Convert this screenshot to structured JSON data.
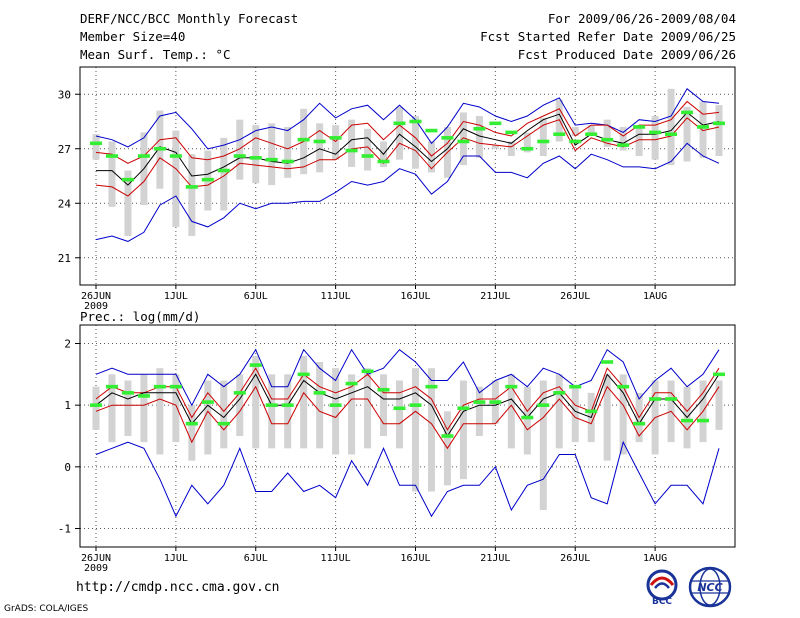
{
  "header": {
    "title": "DERF/NCC/BCC Monthly Forecast",
    "member_size": "Member Size=40",
    "top_var": "Mean Surf. Temp.: °C",
    "period": "For 2009/06/26-2009/08/04",
    "refer_date": "Fcst Started Refer Date 2009/06/25",
    "produced_date": "Fcst Produced Date 2009/06/26"
  },
  "footer": {
    "url": "http://cmdp.ncc.cma.gov.cn",
    "grads": "GrADS: COLA/IGES",
    "logo_bcc": "BCC",
    "logo_ncc": "NCC"
  },
  "colors": {
    "envelope": "#0000cc",
    "spread": "#cc0000",
    "mean": "#000000",
    "marker": "#33ee33",
    "bar": "#d3d3d3"
  },
  "chart_data": [
    {
      "type": "line",
      "title": "Mean Surf. Temp.: °C",
      "ylim": [
        19.5,
        31.5
      ],
      "yticks": [
        21,
        24,
        27,
        30
      ],
      "xlabels": [
        "26JUN",
        "1JUL",
        "6JUL",
        "11JUL",
        "16JUL",
        "21JUL",
        "26JUL",
        "1AUG"
      ],
      "xlabel_year": "2009",
      "days": 40,
      "grid": true,
      "series": [
        {
          "name": "max",
          "values": [
            27.7,
            27.5,
            27.1,
            27.6,
            28.8,
            29.0,
            28.1,
            27.0,
            27.2,
            27.5,
            28.0,
            28.2,
            28.0,
            28.6,
            29.5,
            28.7,
            29.2,
            29.4,
            28.6,
            29.4,
            28.6,
            27.3,
            28.2,
            29.5,
            29.3,
            28.8,
            28.5,
            28.8,
            29.4,
            29.8,
            28.3,
            28.4,
            28.3,
            27.9,
            28.6,
            28.5,
            28.8,
            30.3,
            29.6,
            29.5
          ]
        },
        {
          "name": "upper",
          "values": [
            26.8,
            26.7,
            26.2,
            26.6,
            27.5,
            27.6,
            26.5,
            26.4,
            26.6,
            27.0,
            27.6,
            27.3,
            27.0,
            27.4,
            28.0,
            27.4,
            28.3,
            28.4,
            27.5,
            28.3,
            27.6,
            26.6,
            27.3,
            28.5,
            28.3,
            27.9,
            27.7,
            28.4,
            28.8,
            29.2,
            27.7,
            28.3,
            28.3,
            27.7,
            28.3,
            28.3,
            28.6,
            29.6,
            28.9,
            29.0
          ]
        },
        {
          "name": "mean",
          "values": [
            25.8,
            25.8,
            25.0,
            25.9,
            27.1,
            26.8,
            25.5,
            25.6,
            26.0,
            26.5,
            26.5,
            26.3,
            26.2,
            26.5,
            27.0,
            26.7,
            27.5,
            27.6,
            26.7,
            27.8,
            27.1,
            26.3,
            27.0,
            28.1,
            27.7,
            27.5,
            27.3,
            28.0,
            28.6,
            28.9,
            27.2,
            27.8,
            27.5,
            27.3,
            27.8,
            27.8,
            28.0,
            29.0,
            28.3,
            28.5
          ]
        },
        {
          "name": "lower",
          "values": [
            25.0,
            24.9,
            24.4,
            25.2,
            26.5,
            25.9,
            24.9,
            25.0,
            25.5,
            26.2,
            26.1,
            26.0,
            25.9,
            26.0,
            26.4,
            26.4,
            27.0,
            27.1,
            26.2,
            27.3,
            26.9,
            25.9,
            26.8,
            27.6,
            27.3,
            27.2,
            27.1,
            27.7,
            28.3,
            28.6,
            26.9,
            27.6,
            27.3,
            27.1,
            27.5,
            27.5,
            27.7,
            28.7,
            28.0,
            28.2
          ]
        },
        {
          "name": "min",
          "values": [
            22.0,
            22.2,
            21.9,
            22.4,
            23.9,
            24.4,
            23.0,
            22.7,
            23.2,
            24.0,
            23.7,
            24.0,
            24.0,
            24.1,
            24.1,
            24.6,
            25.2,
            25.0,
            25.2,
            25.9,
            25.6,
            24.5,
            25.2,
            26.6,
            26.6,
            25.7,
            25.7,
            25.4,
            26.2,
            26.6,
            25.9,
            26.7,
            26.4,
            26.0,
            26.0,
            25.9,
            26.3,
            27.3,
            26.6,
            26.2
          ]
        },
        {
          "name": "bar_top",
          "values": [
            27.8,
            27.4,
            25.8,
            27.9,
            29.1,
            28.0,
            26.7,
            26.9,
            27.6,
            28.6,
            28.3,
            28.4,
            28.2,
            29.2,
            28.4,
            28.3,
            28.6,
            28.1,
            27.4,
            29.3,
            28.8,
            27.4,
            28.2,
            29.0,
            28.8,
            27.2,
            27.4,
            27.9,
            28.7,
            29.7,
            28.2,
            28.3,
            28.6,
            28.2,
            28.3,
            28.8,
            30.3,
            29.3,
            29.6,
            29.4
          ]
        },
        {
          "name": "bar_bottom",
          "values": [
            26.4,
            23.8,
            22.2,
            23.9,
            24.8,
            22.7,
            22.2,
            23.6,
            23.6,
            25.3,
            25.1,
            25.0,
            25.4,
            25.6,
            25.7,
            26.4,
            26.0,
            25.8,
            26.0,
            26.4,
            25.9,
            25.7,
            25.4,
            26.1,
            26.5,
            27.0,
            26.6,
            26.8,
            26.6,
            27.4,
            27.7,
            27.8,
            27.1,
            26.9,
            26.6,
            26.4,
            26.1,
            26.3,
            26.5,
            26.6
          ]
        },
        {
          "name": "markers",
          "values": [
            27.3,
            26.6,
            25.3,
            26.6,
            27.0,
            26.6,
            24.9,
            25.3,
            25.8,
            26.6,
            26.5,
            26.4,
            26.3,
            27.5,
            27.4,
            27.6,
            26.9,
            26.6,
            26.3,
            28.4,
            28.5,
            28.0,
            27.6,
            27.4,
            28.1,
            28.4,
            27.9,
            27.0,
            27.4,
            27.8,
            27.4,
            27.8,
            27.5,
            27.2,
            28.2,
            27.9,
            27.8,
            29.0,
            28.2,
            28.4
          ]
        }
      ]
    },
    {
      "type": "line",
      "title": "Prec.: log(mm/d)",
      "ylim": [
        -1.3,
        2.3
      ],
      "yticks": [
        -1,
        0,
        1,
        2
      ],
      "xlabels": [
        "26JUN",
        "1JUL",
        "6JUL",
        "11JUL",
        "16JUL",
        "21JUL",
        "26JUL",
        "1AUG"
      ],
      "xlabel_year": "2009",
      "days": 40,
      "grid": true,
      "series": [
        {
          "name": "max",
          "values": [
            1.5,
            1.6,
            1.5,
            1.5,
            1.5,
            1.5,
            1.0,
            1.5,
            1.3,
            1.5,
            1.9,
            1.3,
            1.3,
            1.9,
            1.6,
            1.4,
            1.9,
            1.5,
            1.6,
            1.9,
            1.7,
            1.4,
            1.4,
            1.7,
            1.2,
            1.4,
            1.5,
            1.3,
            1.6,
            1.5,
            1.3,
            1.4,
            1.9,
            1.7,
            1.1,
            1.4,
            1.6,
            1.3,
            1.5,
            1.9
          ]
        },
        {
          "name": "upper",
          "values": [
            1.1,
            1.3,
            1.2,
            1.2,
            1.3,
            1.3,
            0.8,
            1.2,
            0.9,
            1.2,
            1.6,
            1.1,
            1.1,
            1.5,
            1.3,
            1.2,
            1.3,
            1.5,
            1.2,
            1.2,
            1.3,
            1.1,
            0.6,
            1.0,
            1.1,
            1.1,
            1.3,
            0.9,
            1.2,
            1.3,
            1.0,
            0.9,
            1.6,
            1.3,
            0.8,
            1.2,
            1.2,
            0.9,
            1.2,
            1.6
          ]
        },
        {
          "name": "mean",
          "values": [
            1.0,
            1.2,
            1.1,
            1.2,
            1.2,
            1.2,
            0.7,
            1.0,
            0.8,
            1.1,
            1.5,
            1.0,
            1.0,
            1.4,
            1.2,
            1.1,
            1.2,
            1.3,
            1.1,
            1.1,
            1.2,
            1.0,
            0.5,
            0.9,
            1.0,
            1.0,
            1.1,
            0.8,
            1.1,
            1.2,
            0.9,
            0.8,
            1.5,
            1.2,
            0.7,
            1.1,
            1.1,
            0.8,
            1.1,
            1.5
          ]
        },
        {
          "name": "lower",
          "values": [
            0.9,
            1.0,
            1.0,
            1.0,
            1.1,
            1.0,
            0.4,
            0.9,
            0.6,
            0.9,
            1.3,
            0.7,
            0.7,
            1.2,
            0.9,
            0.8,
            1.1,
            1.1,
            0.7,
            0.7,
            0.9,
            0.7,
            0.3,
            0.7,
            0.7,
            0.7,
            1.0,
            0.6,
            0.8,
            1.1,
            0.8,
            0.7,
            1.3,
            1.0,
            0.5,
            0.8,
            0.9,
            0.6,
            0.9,
            1.3
          ]
        },
        {
          "name": "min",
          "values": [
            0.2,
            0.3,
            0.4,
            0.3,
            -0.2,
            -0.8,
            -0.3,
            -0.6,
            -0.3,
            0.3,
            -0.4,
            -0.4,
            -0.1,
            -0.4,
            -0.3,
            -0.5,
            0.1,
            -0.3,
            0.3,
            -0.3,
            -0.3,
            -0.8,
            -0.4,
            -0.3,
            -0.3,
            0.0,
            -0.7,
            -0.3,
            -0.2,
            0.2,
            0.2,
            -0.5,
            -0.6,
            0.4,
            -0.1,
            -0.6,
            -0.3,
            -0.3,
            -0.6,
            0.3
          ]
        },
        {
          "name": "bar_top",
          "values": [
            1.3,
            1.5,
            1.4,
            1.5,
            1.6,
            1.5,
            1.0,
            1.4,
            1.4,
            1.5,
            1.8,
            1.5,
            1.5,
            1.8,
            1.7,
            1.6,
            1.5,
            1.6,
            1.5,
            1.4,
            1.6,
            1.6,
            0.9,
            1.4,
            1.3,
            1.4,
            1.5,
            1.3,
            1.4,
            1.5,
            1.3,
            1.2,
            1.5,
            1.5,
            1.2,
            1.4,
            1.4,
            1.3,
            1.4,
            1.4
          ]
        },
        {
          "name": "bar_bottom",
          "values": [
            0.6,
            0.4,
            0.5,
            0.4,
            0.2,
            0.4,
            0.1,
            0.2,
            0.3,
            0.5,
            0.3,
            0.3,
            0.3,
            0.3,
            0.3,
            0.2,
            0.2,
            0.3,
            0.5,
            0.3,
            -0.4,
            -0.4,
            -0.3,
            -0.2,
            0.5,
            0.7,
            0.3,
            0.2,
            -0.7,
            0.3,
            0.4,
            0.4,
            0.1,
            0.2,
            0.4,
            0.2,
            0.4,
            0.3,
            0.4,
            0.6
          ]
        },
        {
          "name": "markers",
          "values": [
            1.0,
            1.3,
            1.2,
            1.15,
            1.3,
            1.3,
            0.7,
            1.05,
            0.7,
            1.2,
            1.65,
            1.0,
            1.0,
            1.5,
            1.2,
            1.0,
            1.35,
            1.55,
            1.25,
            0.95,
            1.0,
            1.3,
            0.5,
            0.95,
            1.05,
            1.05,
            1.3,
            0.8,
            1.0,
            1.2,
            1.3,
            0.9,
            1.7,
            1.3,
            0.7,
            1.1,
            1.1,
            0.75,
            0.75,
            1.5
          ]
        }
      ]
    }
  ]
}
